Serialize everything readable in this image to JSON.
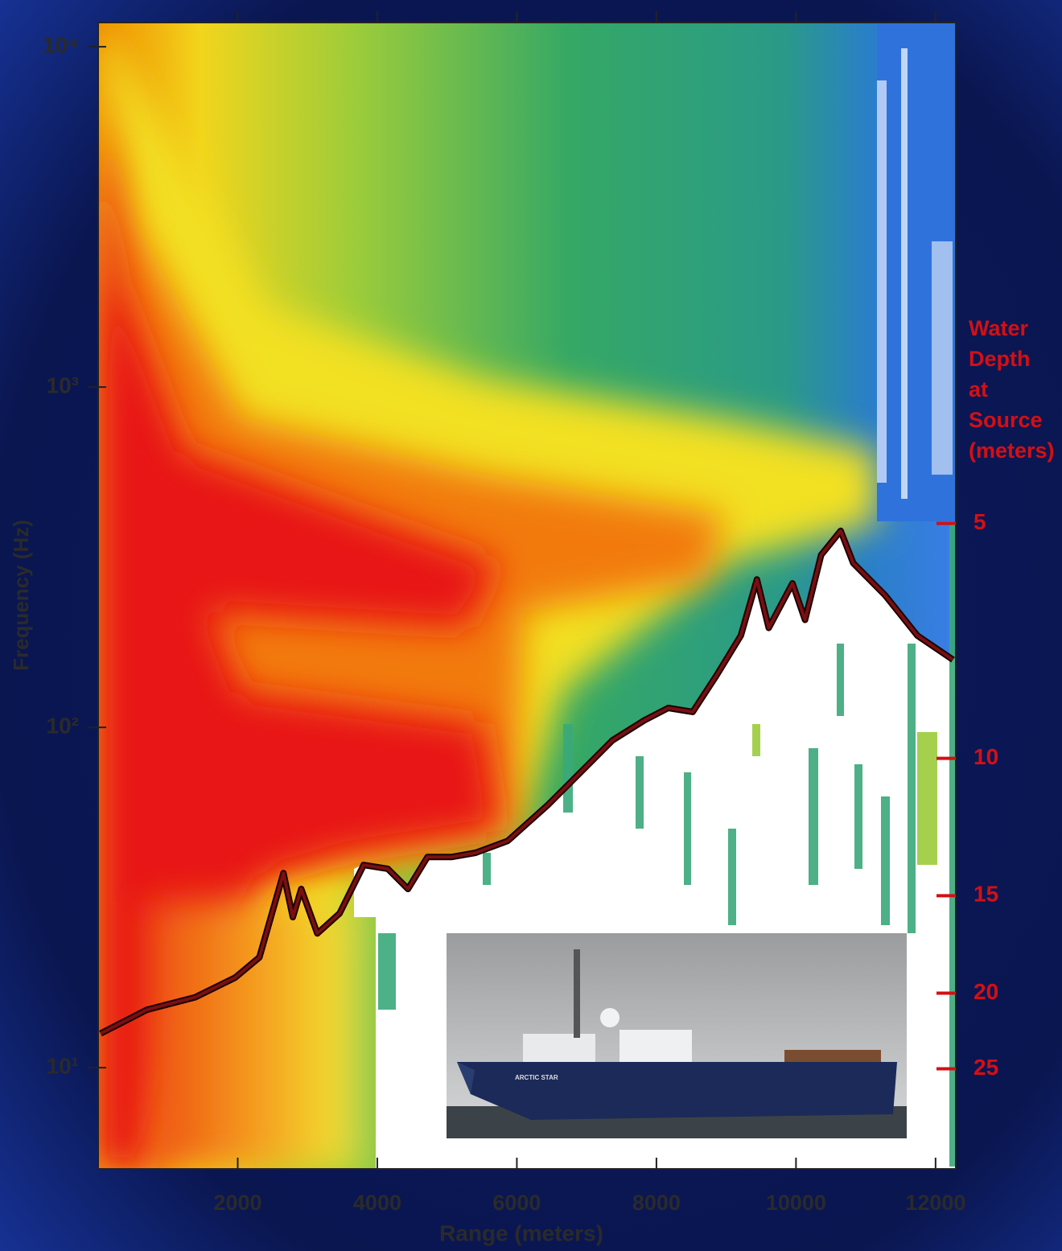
{
  "chart_data": {
    "type": "line",
    "xlabel": "Range (meters)",
    "ylabel": "Frequency (Hz)",
    "y2label": [
      "Water",
      "Depth",
      "at",
      "Source",
      "(meters)"
    ],
    "inset_photo_text": "ARCTIC STAR",
    "xlim": [
      0,
      12290
    ],
    "xticks": [
      2000,
      4000,
      6000,
      8000,
      10000,
      12000
    ],
    "ylim": [
      5.04,
      11780
    ],
    "ylog": true,
    "yticks": [
      {
        "value": 10,
        "label": "10¹"
      },
      {
        "value": 100,
        "label": "10²"
      },
      {
        "value": 1000,
        "label": "10³"
      },
      {
        "value": 10000,
        "label": "10⁴"
      }
    ],
    "y2lim": [
      1.14,
      33.6
    ],
    "y2log": true,
    "y2ticks": [
      5,
      10,
      15,
      20,
      25
    ],
    "y2color": "#d40f14",
    "x": [
      35,
      700,
      1390,
      1965,
      2310,
      2655,
      2790,
      2910,
      3140,
      3460,
      3805,
      4150,
      4440,
      4720,
      5070,
      5410,
      5870,
      6450,
      6910,
      7370,
      7830,
      8170,
      8520,
      8860,
      9210,
      9440,
      9610,
      9950,
      10130,
      10360,
      10640,
      10820,
      11280,
      11740,
      12250
    ],
    "series": [
      {
        "color": "#7a0f12",
        "values": [
          12.6,
          14.8,
          16.1,
          18.4,
          21.1,
          37.3,
          27.7,
          33.5,
          24.8,
          28.4,
          39.4,
          38.4,
          33.5,
          41.6,
          41.6,
          42.8,
          46.4,
          59.3,
          73.7,
          91.6,
          105,
          114,
          111,
          142,
          186,
          272,
          196,
          265,
          207,
          321,
          378,
          304,
          244,
          186,
          158
        ]
      }
    ]
  }
}
